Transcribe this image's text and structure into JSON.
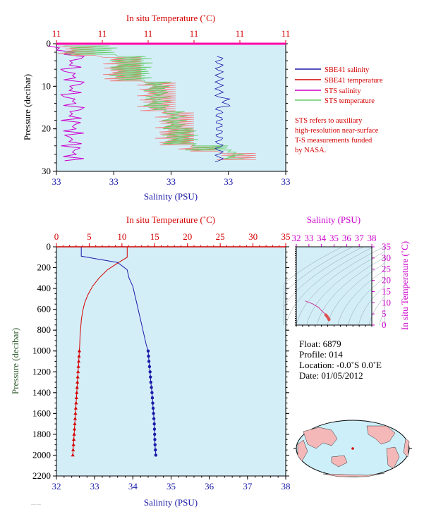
{
  "chart_data": [
    {
      "type": "line",
      "title": "",
      "x_top_label": "In situ Temperature (˚C)",
      "x_top_ticks": [
        "11",
        "11",
        "11",
        "11",
        "11",
        "11"
      ],
      "x_bottom_label": "Salinity (PSU)",
      "x_bottom_ticks": [
        "33",
        "33",
        "33",
        "33",
        "33"
      ],
      "ylabel": "Pressure (decibar)",
      "y_ticks": [
        "0",
        "10",
        "20",
        "30"
      ],
      "ylim": [
        0,
        30
      ],
      "x_fraction_range": [
        0,
        1
      ],
      "series": [
        {
          "name": "SBE41 salinity",
          "color": "#1a1aa8",
          "x": [
            0.71,
            0.71,
            0.71,
            0.71,
            0.71
          ],
          "y": [
            4,
            10,
            16,
            22,
            28
          ]
        },
        {
          "name": "SBE41 temperature",
          "color": "#d40000",
          "x": [
            0.0,
            1.0
          ],
          "y": [
            0.0,
            0.0
          ]
        },
        {
          "name": "STS salinity",
          "color": "#cc00cc",
          "x": [
            0.07,
            0.07,
            0.07,
            0.07,
            0.07
          ],
          "y": [
            1,
            7,
            14,
            20,
            27
          ]
        },
        {
          "name": "STS temperature",
          "color": "#33aa33",
          "x": [
            0.02,
            0.25,
            0.45,
            0.65,
            0.8
          ],
          "y": [
            1,
            6,
            14,
            22,
            27
          ]
        }
      ],
      "annotation": [
        "STS refers to auxiliary",
        "high-resolution near-surface",
        "T-S measurements funded",
        "by NASA."
      ]
    },
    {
      "type": "line",
      "title": "",
      "x_top_label": "In situ Temperature (˚C)",
      "x_top_ticks": [
        "0",
        "5",
        "10",
        "15",
        "20",
        "25",
        "30",
        "35"
      ],
      "x_top_range": [
        0,
        35
      ],
      "x_bottom_label": "Salinity (PSU)",
      "x_bottom_ticks": [
        "32",
        "33",
        "34",
        "35",
        "36",
        "37",
        "38"
      ],
      "x_bottom_range": [
        32,
        38
      ],
      "ylabel": "Pressure (decibar)",
      "y_ticks": [
        "0",
        "200",
        "400",
        "600",
        "800",
        "1000",
        "1200",
        "1400",
        "1600",
        "1800",
        "2000",
        "2200"
      ],
      "ylim": [
        0,
        2200
      ],
      "series": [
        {
          "name": "Temperature",
          "color": "#d40000",
          "x": [
            10.8,
            10.8,
            9.5,
            7.8,
            6.5,
            5.5,
            4.8,
            4.3,
            4.0,
            3.8,
            3.7,
            3.6,
            3.55,
            3.5,
            3.4,
            3.3,
            3.2,
            3.1,
            3.0,
            2.9,
            2.8,
            2.7,
            2.6,
            2.5
          ],
          "y": [
            0,
            100,
            150,
            220,
            300,
            380,
            460,
            540,
            620,
            700,
            780,
            860,
            940,
            1000,
            1100,
            1200,
            1300,
            1400,
            1500,
            1600,
            1700,
            1800,
            1900,
            2000
          ]
        },
        {
          "name": "Salinity",
          "color": "#1a1aa8",
          "x": [
            32.65,
            32.65,
            33.6,
            33.85,
            33.9,
            34.0,
            34.05,
            34.1,
            34.15,
            34.2,
            34.25,
            34.3,
            34.35,
            34.4,
            34.42,
            34.45,
            34.47,
            34.5,
            34.52,
            34.54,
            34.56,
            34.57,
            34.58,
            34.6
          ],
          "y": [
            0,
            90,
            150,
            220,
            300,
            380,
            460,
            540,
            620,
            700,
            780,
            860,
            940,
            1000,
            1100,
            1200,
            1300,
            1400,
            1500,
            1600,
            1700,
            1800,
            1900,
            2000
          ]
        }
      ]
    },
    {
      "type": "scatter",
      "title": "",
      "x_top_label": "Salinity (PSU)",
      "x_ticks": [
        "32",
        "33",
        "34",
        "35",
        "36",
        "37",
        "38"
      ],
      "xlim": [
        32,
        38
      ],
      "ylabel": "In situ Temperature (˚C)",
      "y_ticks": [
        "0",
        "5",
        "10",
        "15",
        "20",
        "25",
        "30",
        "35"
      ],
      "ylim": [
        0,
        35
      ],
      "series": [
        {
          "name": "T-S",
          "color": "#cc3399",
          "x": [
            32.7,
            33.3,
            33.8,
            34.0,
            34.2,
            34.35,
            34.45,
            34.55,
            34.6
          ],
          "y": [
            10.8,
            9.5,
            7.8,
            6.5,
            5.5,
            4.5,
            3.8,
            3.0,
            2.5
          ]
        }
      ]
    }
  ],
  "float_info": {
    "float": "Float:  6879",
    "profile": "Profile:  014",
    "location": "Location:  -0.0˚S   0.0˚E",
    "date": "Date:  01/05/2012"
  },
  "colors": {
    "plot_bg": "#d4eef8",
    "land": "#f4b8b8",
    "ocean": "#cdeffa"
  }
}
